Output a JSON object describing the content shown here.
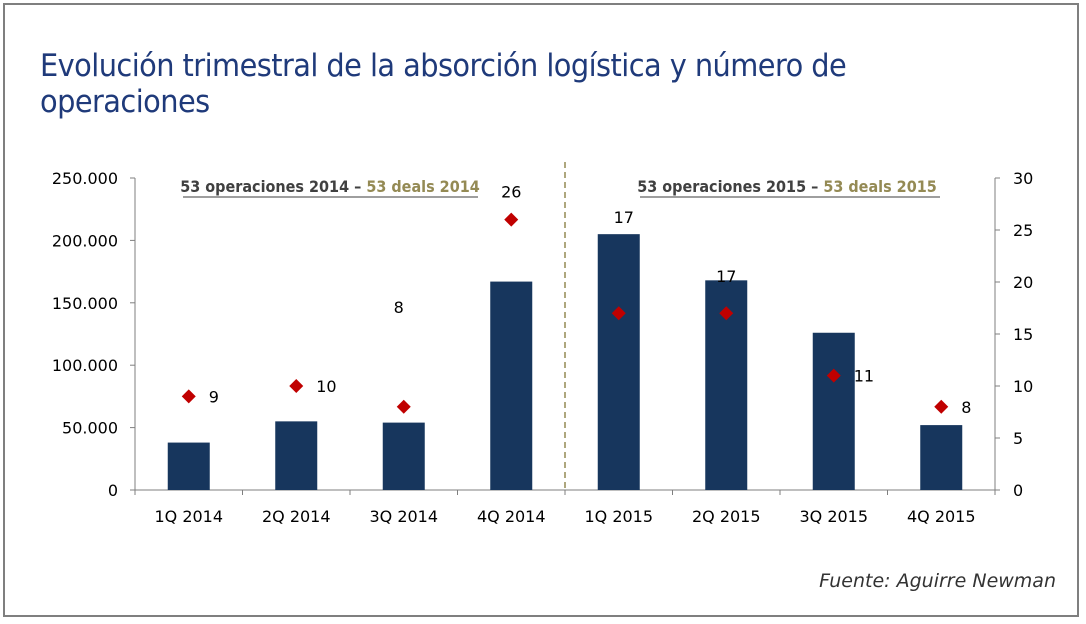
{
  "title": "Evolución trimestral de la absorción logística y número de operaciones",
  "source": "Fuente: Aguirre Newman",
  "annotations": [
    {
      "part1": "53 operaciones 2014 – ",
      "part2": "53 deals 2014"
    },
    {
      "part1": "53 operaciones 2015 – ",
      "part2": "53 deals 2015"
    }
  ],
  "colors": {
    "bar": "#17365d",
    "marker": "#c00000",
    "annotation_accent": "#948a54",
    "title": "#1f3a7a"
  },
  "chart_data": {
    "type": "bar",
    "categories": [
      "1Q 2014",
      "2Q 2014",
      "3Q 2014",
      "4Q 2014",
      "1Q 2015",
      "2Q 2015",
      "3Q 2015",
      "4Q 2015"
    ],
    "series": [
      {
        "type": "bar",
        "axis": "left",
        "values": [
          38000,
          55000,
          54000,
          167000,
          205000,
          168000,
          126000,
          52000
        ]
      },
      {
        "type": "scatter",
        "axis": "right",
        "marker": "diamond",
        "values": [
          9,
          10,
          8,
          26,
          17,
          17,
          11,
          8
        ]
      }
    ],
    "y_left": {
      "min": 0,
      "max": 250000,
      "ticks": [
        "0",
        "50.000",
        "100.000",
        "150.000",
        "200.000",
        "250.000"
      ]
    },
    "y_right": {
      "min": 0,
      "max": 30,
      "ticks": [
        "0",
        "5",
        "10",
        "15",
        "20",
        "25",
        "30"
      ]
    },
    "grid": false,
    "divider_after": "4Q 2014"
  }
}
